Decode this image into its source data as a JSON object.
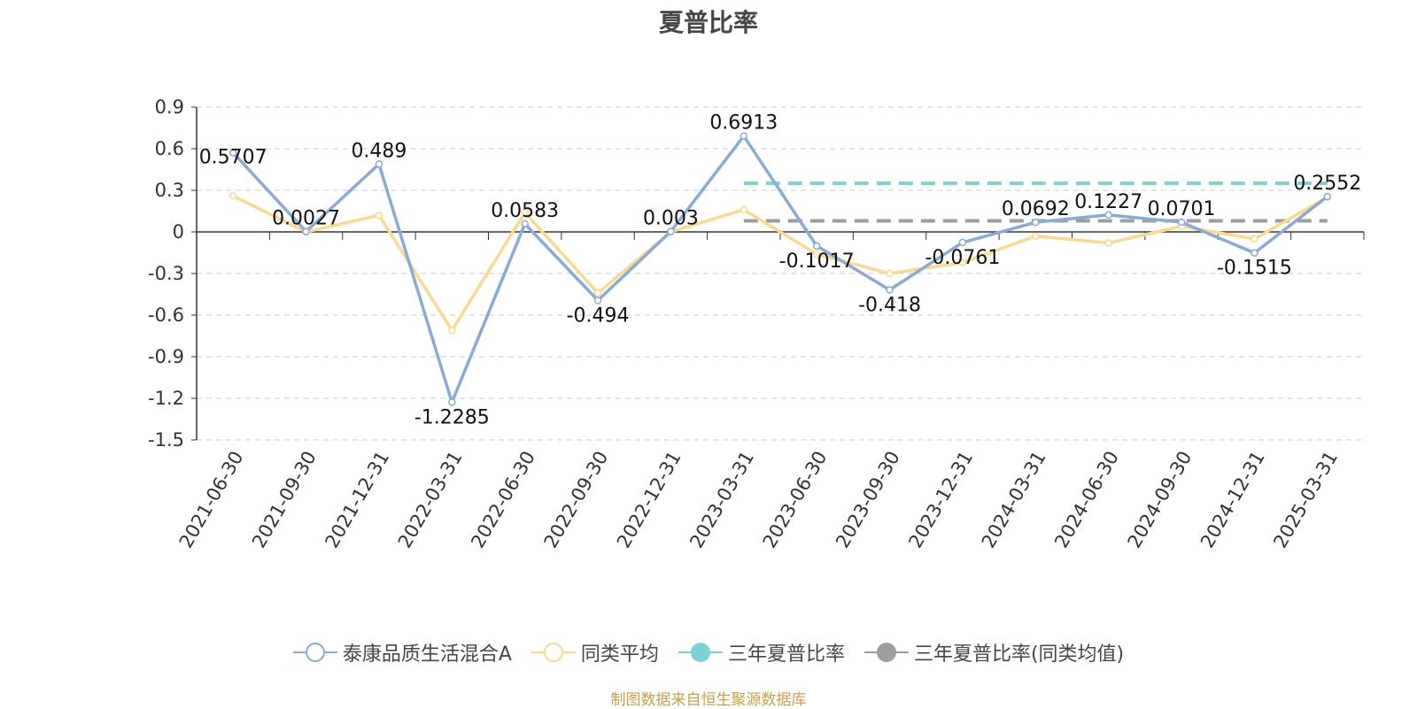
{
  "chart_data": {
    "type": "line",
    "title": "夏普比率",
    "categories": [
      "2021-06-30",
      "2021-09-30",
      "2021-12-31",
      "2022-03-31",
      "2022-06-30",
      "2022-09-30",
      "2022-12-31",
      "2023-03-31",
      "2023-06-30",
      "2023-09-30",
      "2023-12-31",
      "2024-03-31",
      "2024-06-30",
      "2024-09-30",
      "2024-12-31",
      "2025-03-31"
    ],
    "series": [
      {
        "name": "泰康品质生活混合A",
        "color": "#8aabd6",
        "values": [
          0.5707,
          0.0027,
          0.489,
          -1.2285,
          0.0583,
          -0.494,
          0.003,
          0.6913,
          -0.1017,
          -0.418,
          -0.0761,
          0.0692,
          0.1227,
          0.0701,
          -0.1515,
          0.2552
        ],
        "labels": [
          "0.5707",
          "0.0027",
          "0.489",
          "-1.2285",
          "0.0583",
          "-0.494",
          "0.003",
          "0.6913",
          "-0.1017",
          "-0.418",
          "-0.0761",
          "0.0692",
          "0.1227",
          "0.0701",
          "-0.1515",
          "0.2552"
        ]
      },
      {
        "name": "同类平均",
        "color": "#fbd98e",
        "values": [
          0.26,
          0.0,
          0.12,
          -0.71,
          0.14,
          -0.44,
          0.0,
          0.16,
          -0.16,
          -0.3,
          -0.22,
          -0.03,
          -0.08,
          0.04,
          -0.05,
          0.25
        ]
      }
    ],
    "reference_lines": [
      {
        "name": "三年夏普比率",
        "color": "#7fd2d4",
        "value": 0.35,
        "from": "2023-03-31",
        "to": "2025-03-31"
      },
      {
        "name": "三年夏普比率(同类均值)",
        "color": "#9e9e9e",
        "value": 0.08,
        "from": "2023-03-31",
        "to": "2025-03-31"
      }
    ],
    "y_ticks": [
      "0.9",
      "0.6",
      "0.3",
      "0",
      "-0.3",
      "-0.6",
      "-0.9",
      "-1.2",
      "-1.5"
    ],
    "ylim": [
      -1.5,
      0.9
    ],
    "grid": true,
    "legend_position": "bottom"
  },
  "legend": [
    {
      "label": "泰康品质生活混合A",
      "color": "#8aabd6",
      "style": "line-hollow"
    },
    {
      "label": "同类平均",
      "color": "#fbd98e",
      "style": "line-hollow"
    },
    {
      "label": "三年夏普比率",
      "color": "#7fd2d4",
      "style": "line-filled"
    },
    {
      "label": "三年夏普比率(同类均值)",
      "color": "#9e9e9e",
      "style": "line-filled"
    }
  ],
  "source_text": "制图数据来自恒生聚源数据库"
}
